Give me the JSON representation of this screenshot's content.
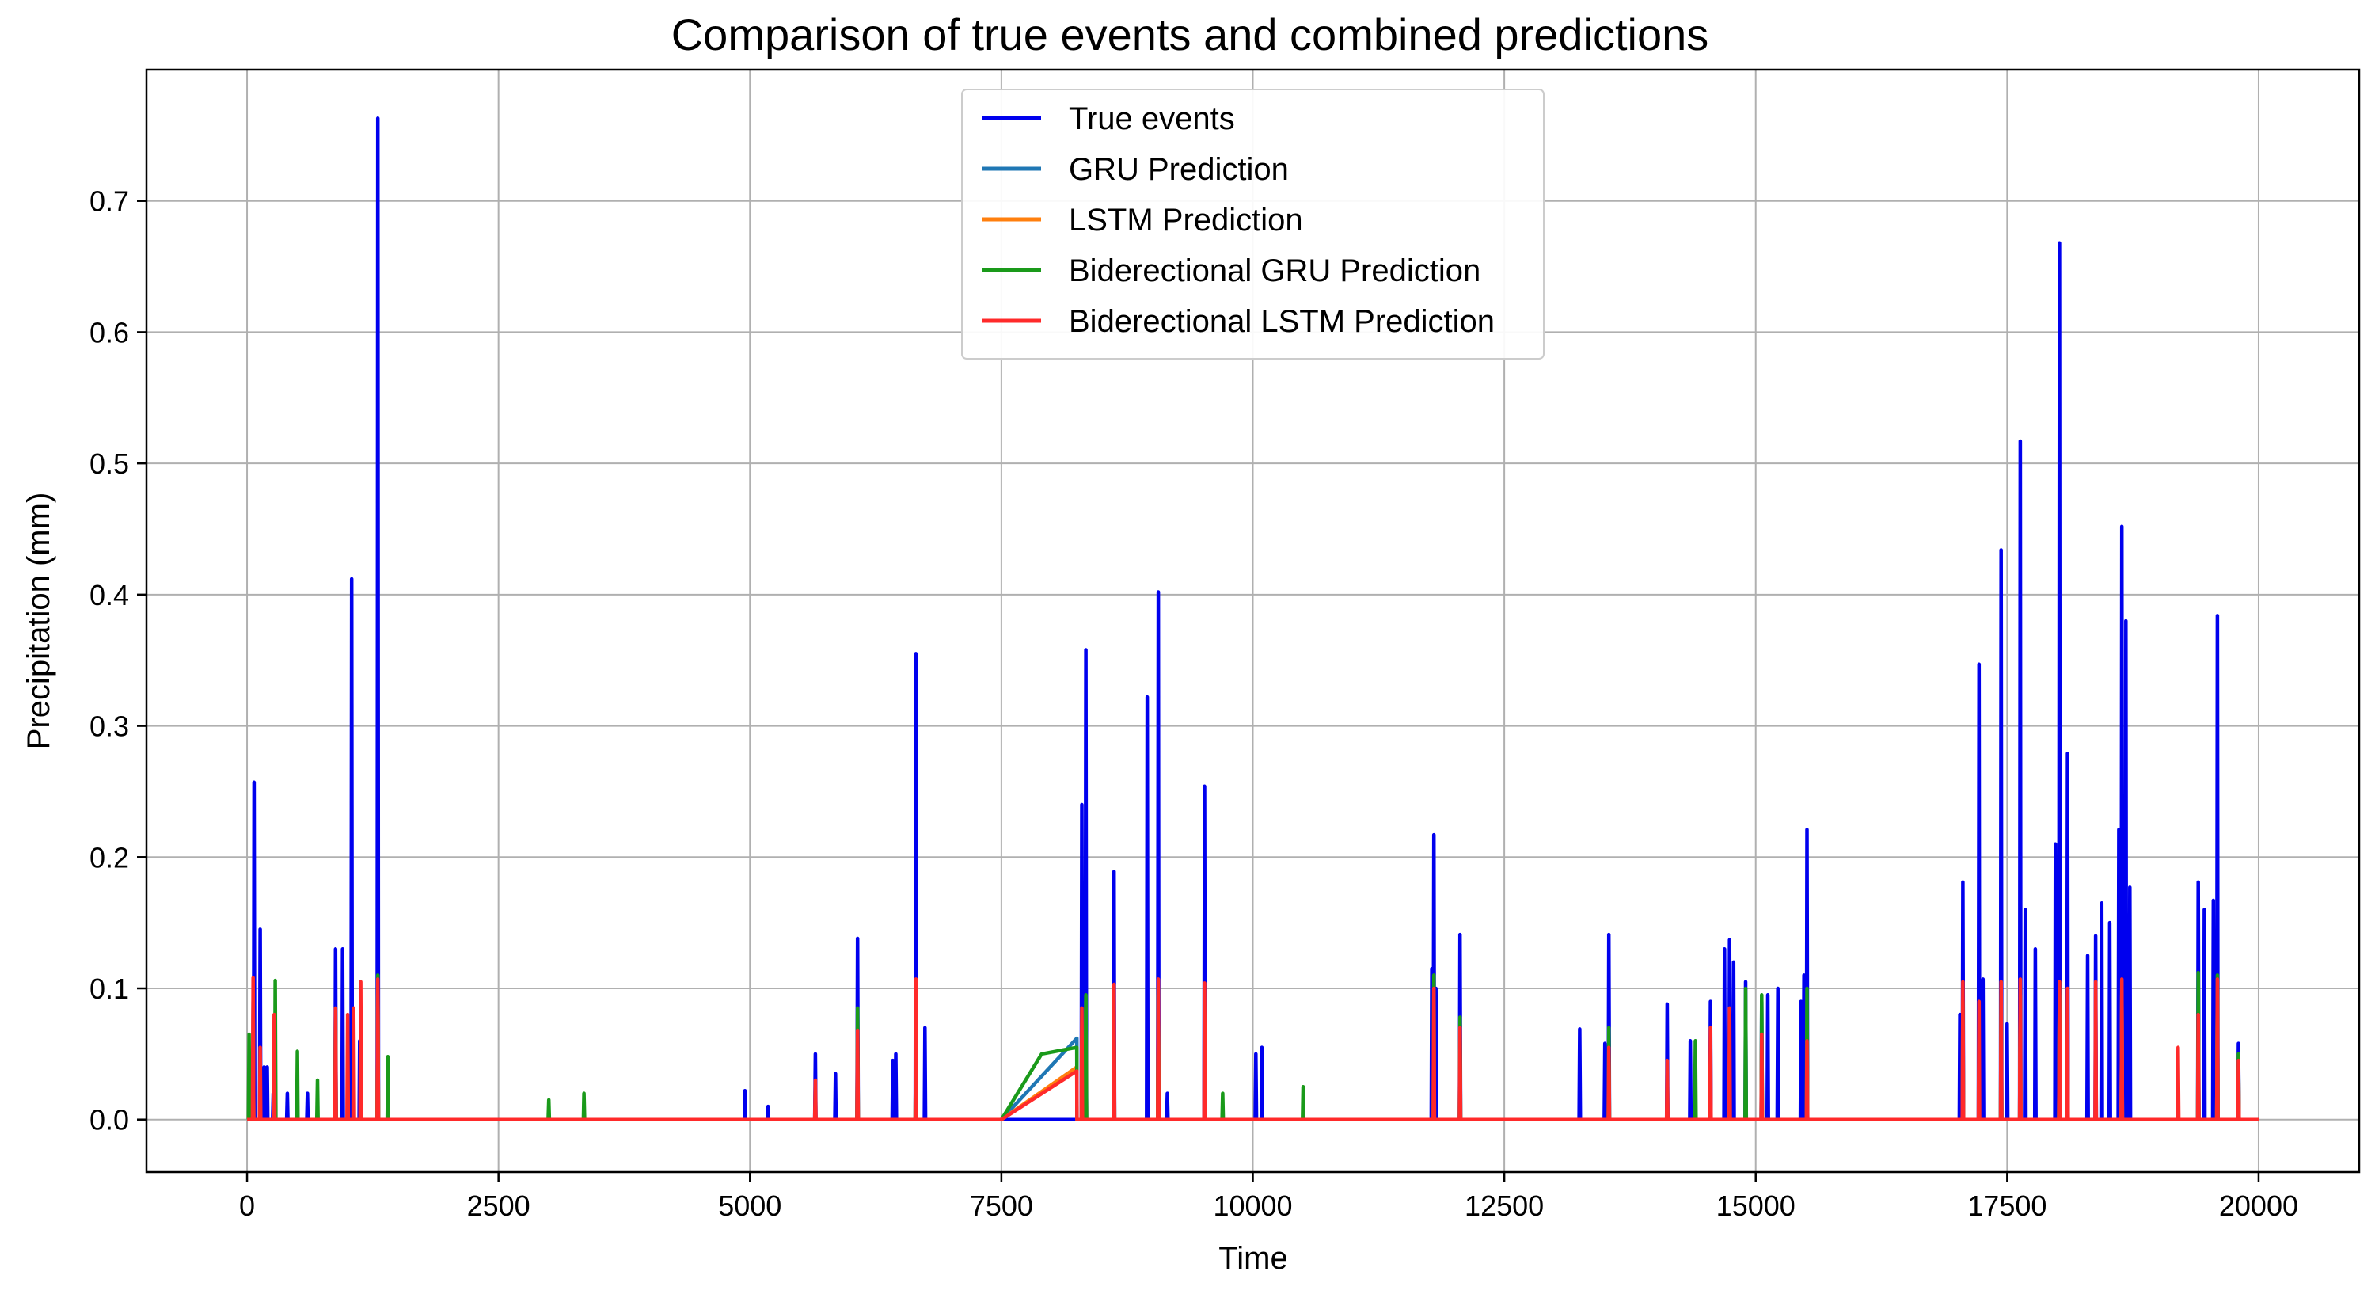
{
  "chart_data": {
    "type": "line",
    "title": "Comparison of  true events and combined predictions",
    "xlabel": "Time",
    "ylabel": "Precipitation (mm)",
    "xlim": [
      -1000,
      21000
    ],
    "ylim": [
      -0.04,
      0.8
    ],
    "xticks": [
      0,
      2500,
      5000,
      7500,
      10000,
      12500,
      15000,
      17500,
      20000
    ],
    "xtick_labels": [
      "0",
      "2500",
      "5000",
      "7500",
      "10000",
      "12500",
      "15000",
      "17500",
      "20000"
    ],
    "yticks": [
      0.0,
      0.1,
      0.2,
      0.3,
      0.4,
      0.5,
      0.6,
      0.7
    ],
    "ytick_labels": [
      "0.0",
      "0.1",
      "0.2",
      "0.3",
      "0.4",
      "0.5",
      "0.6",
      "0.7"
    ],
    "grid": true,
    "legend_position": "top-center",
    "series": [
      {
        "name": "True events",
        "color": "#0000ee",
        "spikes": [
          [
            30,
            0.03
          ],
          [
            70,
            0.257
          ],
          [
            130,
            0.145
          ],
          [
            170,
            0.04
          ],
          [
            200,
            0.04
          ],
          [
            260,
            0.02
          ],
          [
            400,
            0.02
          ],
          [
            600,
            0.02
          ],
          [
            880,
            0.13
          ],
          [
            950,
            0.13
          ],
          [
            1040,
            0.412
          ],
          [
            1120,
            0.06
          ],
          [
            1300,
            0.763
          ],
          [
            4950,
            0.022
          ],
          [
            5180,
            0.01
          ],
          [
            5650,
            0.05
          ],
          [
            5850,
            0.035
          ],
          [
            6070,
            0.138
          ],
          [
            6420,
            0.045
          ],
          [
            6450,
            0.05
          ],
          [
            6650,
            0.355
          ],
          [
            6740,
            0.07
          ],
          [
            8300,
            0.24
          ],
          [
            8340,
            0.358
          ],
          [
            8620,
            0.189
          ],
          [
            8950,
            0.322
          ],
          [
            9060,
            0.402
          ],
          [
            9150,
            0.02
          ],
          [
            9520,
            0.254
          ],
          [
            10030,
            0.05
          ],
          [
            10090,
            0.055
          ],
          [
            11780,
            0.115
          ],
          [
            11800,
            0.217
          ],
          [
            11820,
            0.1
          ],
          [
            12060,
            0.141
          ],
          [
            13250,
            0.069
          ],
          [
            13500,
            0.058
          ],
          [
            13540,
            0.141
          ],
          [
            14120,
            0.088
          ],
          [
            14350,
            0.06
          ],
          [
            14550,
            0.09
          ],
          [
            14690,
            0.13
          ],
          [
            14740,
            0.137
          ],
          [
            14780,
            0.12
          ],
          [
            14900,
            0.105
          ],
          [
            15060,
            0.09
          ],
          [
            15120,
            0.095
          ],
          [
            15220,
            0.1
          ],
          [
            15450,
            0.09
          ],
          [
            15480,
            0.11
          ],
          [
            15510,
            0.221
          ],
          [
            17030,
            0.08
          ],
          [
            17060,
            0.181
          ],
          [
            17220,
            0.347
          ],
          [
            17260,
            0.107
          ],
          [
            17440,
            0.434
          ],
          [
            17500,
            0.073
          ],
          [
            17630,
            0.517
          ],
          [
            17680,
            0.16
          ],
          [
            17780,
            0.13
          ],
          [
            17980,
            0.21
          ],
          [
            18020,
            0.668
          ],
          [
            18100,
            0.279
          ],
          [
            18300,
            0.125
          ],
          [
            18380,
            0.14
          ],
          [
            18440,
            0.165
          ],
          [
            18520,
            0.15
          ],
          [
            18610,
            0.221
          ],
          [
            18640,
            0.452
          ],
          [
            18680,
            0.38
          ],
          [
            18720,
            0.177
          ],
          [
            19400,
            0.181
          ],
          [
            19460,
            0.16
          ],
          [
            19550,
            0.167
          ],
          [
            19590,
            0.384
          ],
          [
            19800,
            0.058
          ]
        ],
        "ramp": null
      },
      {
        "name": "GRU Prediction",
        "color": "#1f77b4",
        "spikes": [
          [
            60,
            0.09
          ],
          [
            1300,
            0.1
          ],
          [
            6650,
            0.1
          ],
          [
            8340,
            0.09
          ],
          [
            9060,
            0.1
          ],
          [
            17630,
            0.1
          ],
          [
            18020,
            0.1
          ],
          [
            18640,
            0.1
          ],
          [
            19590,
            0.1
          ]
        ],
        "ramp": [
          [
            7500,
            0.0
          ],
          [
            8250,
            0.062
          ]
        ]
      },
      {
        "name": "LSTM Prediction",
        "color": "#ff7f0e",
        "spikes": [
          [
            60,
            0.085
          ],
          [
            1300,
            0.095
          ],
          [
            6650,
            0.095
          ],
          [
            8340,
            0.085
          ],
          [
            9060,
            0.095
          ],
          [
            17630,
            0.095
          ],
          [
            18020,
            0.095
          ],
          [
            18640,
            0.095
          ],
          [
            19590,
            0.095
          ]
        ],
        "ramp": [
          [
            7500,
            0.0
          ],
          [
            8250,
            0.04
          ]
        ]
      },
      {
        "name": "Biderectional GRU Prediction",
        "color": "#1a9a1a",
        "spikes": [
          [
            20,
            0.065
          ],
          [
            280,
            0.106
          ],
          [
            500,
            0.052
          ],
          [
            700,
            0.03
          ],
          [
            880,
            0.085
          ],
          [
            1300,
            0.11
          ],
          [
            1400,
            0.048
          ],
          [
            3000,
            0.015
          ],
          [
            3350,
            0.02
          ],
          [
            6070,
            0.085
          ],
          [
            6650,
            0.1
          ],
          [
            8340,
            0.095
          ],
          [
            8620,
            0.07
          ],
          [
            9060,
            0.1
          ],
          [
            9700,
            0.02
          ],
          [
            10500,
            0.025
          ],
          [
            11800,
            0.11
          ],
          [
            12060,
            0.078
          ],
          [
            13540,
            0.07
          ],
          [
            14400,
            0.06
          ],
          [
            14900,
            0.1
          ],
          [
            15060,
            0.095
          ],
          [
            15510,
            0.1
          ],
          [
            17060,
            0.09
          ],
          [
            17440,
            0.105
          ],
          [
            18020,
            0.105
          ],
          [
            19400,
            0.112
          ],
          [
            19590,
            0.11
          ],
          [
            19800,
            0.05
          ]
        ],
        "ramp": [
          [
            7500,
            0.0
          ],
          [
            7900,
            0.05
          ],
          [
            8250,
            0.055
          ]
        ]
      },
      {
        "name": "Biderectional LSTM Prediction",
        "color": "#ff2a2a",
        "spikes": [
          [
            60,
            0.108
          ],
          [
            130,
            0.055
          ],
          [
            270,
            0.08
          ],
          [
            880,
            0.085
          ],
          [
            1000,
            0.08
          ],
          [
            1060,
            0.085
          ],
          [
            1130,
            0.105
          ],
          [
            1300,
            0.107
          ],
          [
            5650,
            0.03
          ],
          [
            6070,
            0.068
          ],
          [
            6650,
            0.107
          ],
          [
            8300,
            0.085
          ],
          [
            8620,
            0.103
          ],
          [
            9060,
            0.107
          ],
          [
            9520,
            0.104
          ],
          [
            11800,
            0.1
          ],
          [
            12060,
            0.07
          ],
          [
            13540,
            0.055
          ],
          [
            14120,
            0.045
          ],
          [
            14550,
            0.07
          ],
          [
            14740,
            0.085
          ],
          [
            15060,
            0.065
          ],
          [
            15510,
            0.06
          ],
          [
            17060,
            0.105
          ],
          [
            17220,
            0.09
          ],
          [
            17440,
            0.105
          ],
          [
            17630,
            0.107
          ],
          [
            18020,
            0.105
          ],
          [
            18100,
            0.1
          ],
          [
            18380,
            0.105
          ],
          [
            18640,
            0.107
          ],
          [
            19200,
            0.055
          ],
          [
            19400,
            0.08
          ],
          [
            19590,
            0.107
          ],
          [
            19800,
            0.045
          ]
        ],
        "ramp": [
          [
            7500,
            0.0
          ],
          [
            8250,
            0.037
          ]
        ]
      }
    ]
  }
}
